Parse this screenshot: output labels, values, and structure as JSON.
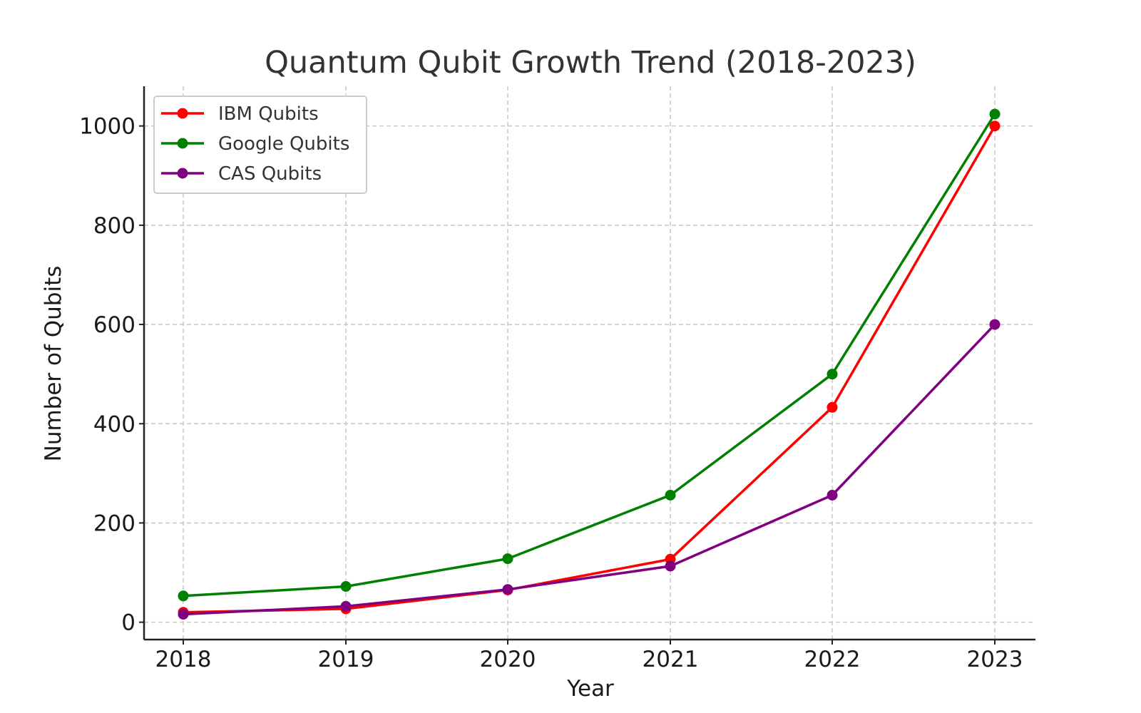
{
  "chart_data": {
    "type": "line",
    "title": "Quantum Qubit Growth Trend (2018-2023)",
    "xlabel": "Year",
    "ylabel": "Number of Qubits",
    "x": [
      "2018",
      "2019",
      "2020",
      "2021",
      "2022",
      "2023"
    ],
    "ylim": [
      -35,
      1080
    ],
    "yticks": [
      0,
      200,
      400,
      600,
      800,
      1000
    ],
    "grid": true,
    "legend_position": "top-left",
    "series": [
      {
        "name": "IBM Qubits",
        "color": "#ff0000",
        "values": [
          20,
          27,
          65,
          127,
          433,
          1000
        ]
      },
      {
        "name": "Google Qubits",
        "color": "#008000",
        "values": [
          53,
          72,
          128,
          256,
          500,
          1024
        ]
      },
      {
        "name": "CAS Qubits",
        "color": "#800080",
        "values": [
          16,
          32,
          66,
          113,
          256,
          600
        ]
      }
    ]
  }
}
